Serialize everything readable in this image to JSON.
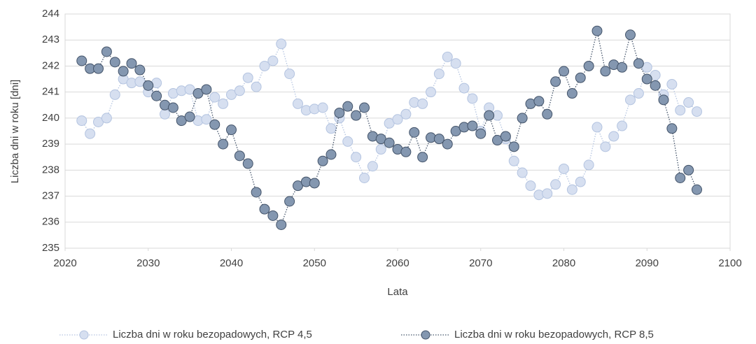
{
  "chart_data": {
    "type": "line",
    "x_label": "Lata",
    "y_label": "Liczba dni w roku [dni]",
    "x": [
      2022,
      2023,
      2024,
      2025,
      2026,
      2027,
      2028,
      2029,
      2030,
      2031,
      2032,
      2033,
      2034,
      2035,
      2036,
      2037,
      2038,
      2039,
      2040,
      2041,
      2042,
      2043,
      2044,
      2045,
      2046,
      2047,
      2048,
      2049,
      2050,
      2051,
      2052,
      2053,
      2054,
      2055,
      2056,
      2057,
      2058,
      2059,
      2060,
      2061,
      2062,
      2063,
      2064,
      2065,
      2066,
      2067,
      2068,
      2069,
      2070,
      2071,
      2072,
      2073,
      2074,
      2075,
      2076,
      2077,
      2078,
      2079,
      2080,
      2081,
      2082,
      2083,
      2084,
      2085,
      2086,
      2087,
      2088,
      2089,
      2090,
      2091,
      2092,
      2093,
      2094,
      2095,
      2096
    ],
    "series": [
      {
        "name": "Liczba dni w roku bezopadowych, RCP 4,5",
        "color": "#d6dff0",
        "edge_color": "#b4c4e0",
        "values": [
          239.9,
          239.4,
          239.85,
          240.0,
          240.9,
          241.5,
          241.35,
          241.4,
          241.0,
          241.35,
          240.15,
          240.95,
          241.05,
          241.1,
          239.9,
          239.95,
          240.8,
          240.55,
          240.9,
          241.05,
          241.55,
          241.2,
          242.0,
          242.2,
          242.85,
          241.7,
          240.55,
          240.3,
          240.35,
          240.4,
          239.6,
          240.0,
          239.1,
          238.5,
          237.7,
          238.15,
          238.8,
          239.8,
          239.95,
          240.15,
          240.6,
          240.55,
          241.0,
          241.7,
          242.35,
          242.1,
          241.15,
          240.75,
          239.5,
          240.4,
          240.1,
          239.2,
          238.35,
          237.9,
          237.4,
          237.05,
          237.1,
          237.45,
          238.05,
          237.25,
          237.55,
          238.2,
          239.65,
          238.9,
          239.3,
          239.7,
          240.7,
          240.95,
          241.95,
          241.65,
          240.9,
          241.3,
          240.3,
          240.6,
          240.25
        ]
      },
      {
        "name": "Liczba dni w roku bezopadowych, RCP 8,5",
        "color": "#8497b0",
        "edge_color": "#44546a",
        "values": [
          242.2,
          241.9,
          241.9,
          242.55,
          242.15,
          241.8,
          242.1,
          241.85,
          241.25,
          240.85,
          240.5,
          240.4,
          239.9,
          240.05,
          240.95,
          241.1,
          239.75,
          239.0,
          239.55,
          238.55,
          238.25,
          237.15,
          236.5,
          236.25,
          235.9,
          236.8,
          237.4,
          237.55,
          237.5,
          238.35,
          238.6,
          240.2,
          240.45,
          240.1,
          240.4,
          239.3,
          239.2,
          239.05,
          238.8,
          238.7,
          239.45,
          238.5,
          239.25,
          239.2,
          239.0,
          239.5,
          239.65,
          239.7,
          239.4,
          240.1,
          239.15,
          239.3,
          238.9,
          240.0,
          240.55,
          240.65,
          240.15,
          241.4,
          241.8,
          240.95,
          241.55,
          242.0,
          243.35,
          241.8,
          242.05,
          241.95,
          243.2,
          242.1,
          241.5,
          241.25,
          240.7,
          239.6,
          237.7,
          238.0,
          237.25
        ]
      }
    ],
    "xlim": [
      2020,
      2100
    ],
    "xticks": [
      2020,
      2030,
      2040,
      2050,
      2060,
      2070,
      2080,
      2090,
      2100
    ],
    "ylim": [
      235,
      244
    ],
    "yticks": [
      235,
      236,
      237,
      238,
      239,
      240,
      241,
      242,
      243,
      244
    ],
    "grid": true,
    "legend": "bottom"
  }
}
